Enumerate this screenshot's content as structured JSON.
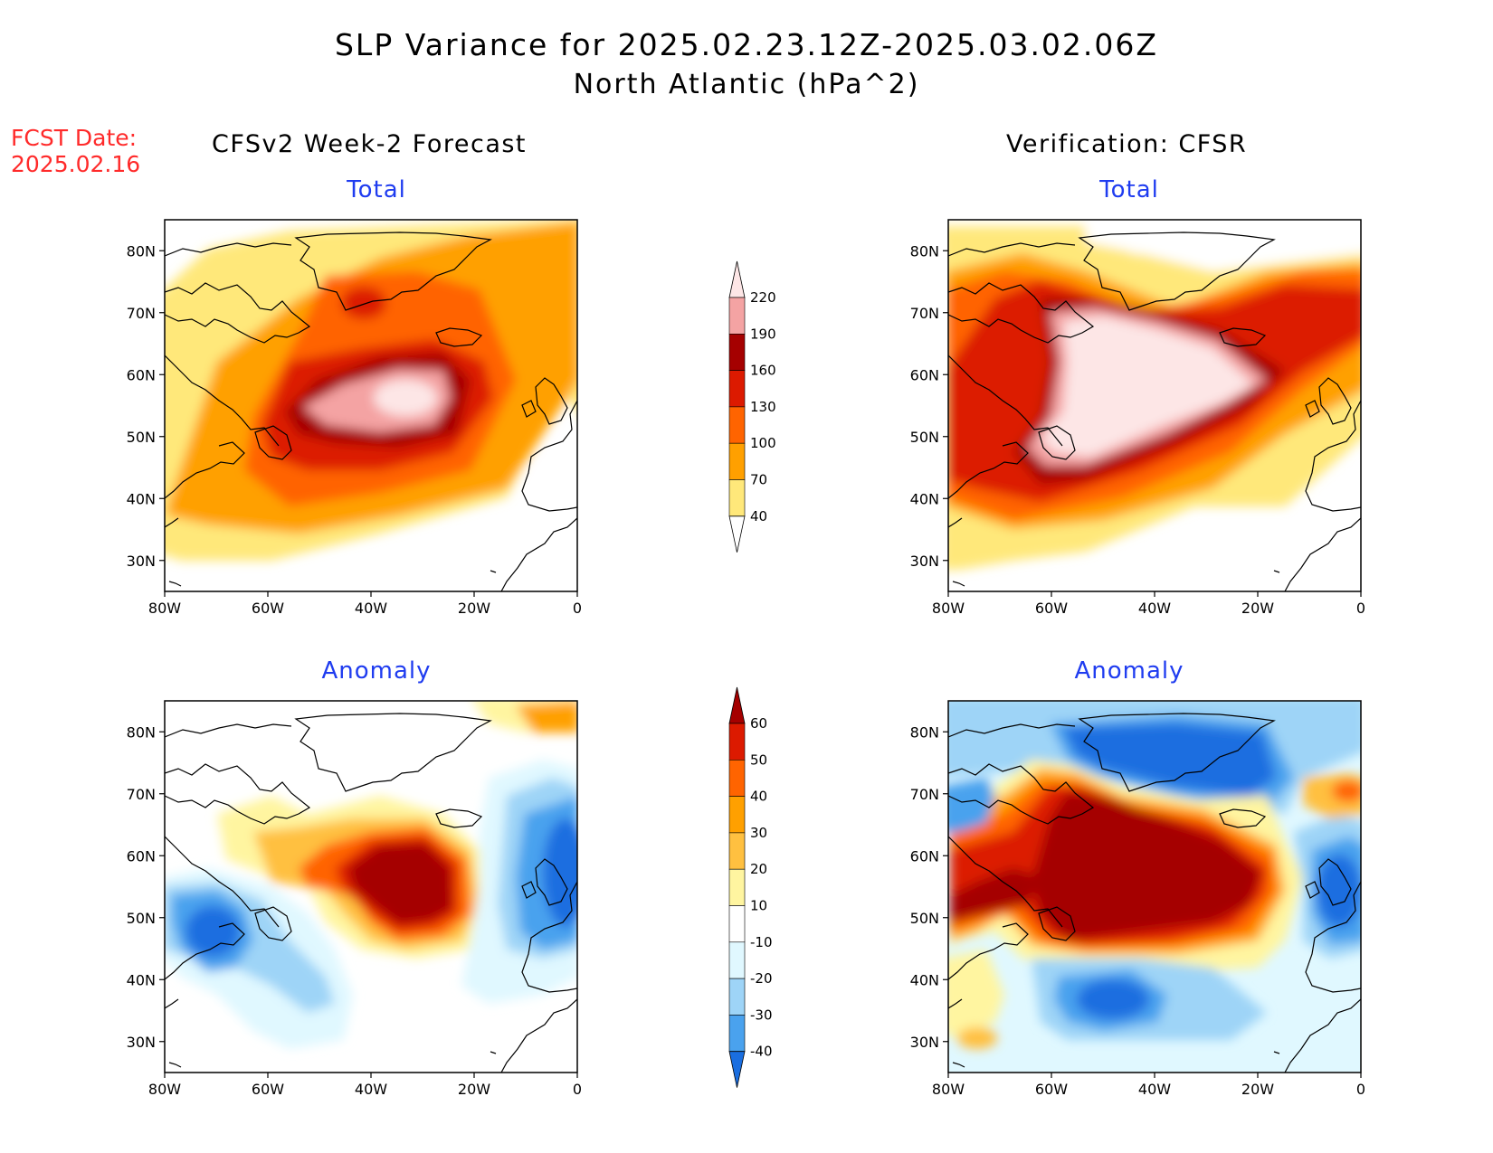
{
  "title": {
    "line1": "SLP Variance for 2025.02.23.12Z-2025.03.02.06Z",
    "line2": "North Atlantic (hPa^2)"
  },
  "fcst_date": {
    "label": "FCST Date:",
    "value": "2025.02.16"
  },
  "columns": {
    "left": "CFSv2 Week-2 Forecast",
    "right": "Verification: CFSR"
  },
  "panel_titles": {
    "top_left": "Total",
    "top_right": "Total",
    "bottom_left": "Anomaly",
    "bottom_right": "Anomaly"
  },
  "axes": {
    "lat_labels": [
      "80N",
      "70N",
      "60N",
      "50N",
      "40N",
      "30N"
    ],
    "lon_labels": [
      "80W",
      "60W",
      "40W",
      "20W",
      "0"
    ],
    "lat_range": [
      25,
      85
    ],
    "lon_range": [
      -80,
      0
    ]
  },
  "colorbar_total": {
    "levels": [
      "220",
      "190",
      "160",
      "130",
      "100",
      "70",
      "40"
    ],
    "colors": [
      "#fde6e6",
      "#f4a3a3",
      "#a50000",
      "#dc1a00",
      "#ff6400",
      "#ffa000",
      "#ffe87a"
    ]
  },
  "colorbar_anomaly": {
    "levels": [
      "60",
      "50",
      "40",
      "30",
      "20",
      "10",
      "-10",
      "-20",
      "-30",
      "-40"
    ],
    "colors": [
      "#a50000",
      "#dc1a00",
      "#ff6400",
      "#ffa000",
      "#ffc040",
      "#fff5a0",
      "#ffffff",
      "#e0f8ff",
      "#9ed4f7",
      "#4aa2ee",
      "#1a6ee0"
    ]
  },
  "chart_data": [
    {
      "type": "heatmap",
      "title": "Total",
      "model": "CFSv2 Week-2 Forecast",
      "units": "hPa^2",
      "features": [
        {
          "center_lon": -35,
          "center_lat": 55,
          "level_min": 190,
          "note": "maximum"
        },
        {
          "center_lon": -38,
          "center_lat": 71,
          "level_min": 130,
          "note": "secondary max"
        }
      ]
    },
    {
      "type": "heatmap",
      "title": "Total",
      "model": "Verification: CFSR",
      "units": "hPa^2",
      "features": [
        {
          "center_lon": -40,
          "center_lat": 60,
          "level_min": 220,
          "note": "broad maximum"
        }
      ]
    },
    {
      "type": "heatmap",
      "title": "Anomaly",
      "model": "CFSv2 Week-2 Forecast",
      "units": "hPa^2",
      "features": [
        {
          "center_lon": -32,
          "center_lat": 56,
          "level_min": 60,
          "note": "positive max"
        },
        {
          "center_lon": -72,
          "center_lat": 50,
          "level_max": -30,
          "note": "negative min"
        },
        {
          "center_lon": -3,
          "center_lat": 56,
          "level_max": -30,
          "note": "negative min"
        }
      ]
    },
    {
      "type": "heatmap",
      "title": "Anomaly",
      "model": "Verification: CFSR",
      "units": "hPa^2",
      "features": [
        {
          "center_lon": -40,
          "center_lat": 60,
          "level_min": 60,
          "note": "large positive"
        },
        {
          "center_lon": -38,
          "center_lat": 78,
          "level_max": -30,
          "note": "negative over Greenland"
        },
        {
          "center_lon": -42,
          "center_lat": 37,
          "level_max": -40,
          "note": "negative"
        },
        {
          "center_lon": -5,
          "center_lat": 55,
          "level_max": -30,
          "note": "negative"
        }
      ]
    }
  ]
}
